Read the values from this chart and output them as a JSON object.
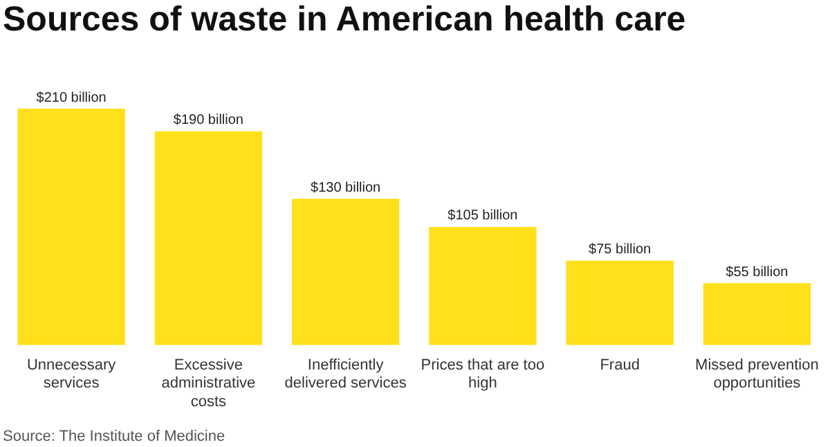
{
  "chart_data": {
    "type": "bar",
    "title": "Sources of waste in American health care",
    "categories": [
      "Unnecessary services",
      "Excessive administrative costs",
      "Inefficiently delivered services",
      "Prices that are too high",
      "Fraud",
      "Missed prevention opportunities"
    ],
    "values": [
      210,
      190,
      130,
      105,
      75,
      55
    ],
    "value_labels": [
      "$210 billion",
      "$190 billion",
      "$130 billion",
      "$105 billion",
      "$75 billion",
      "$55 billion"
    ],
    "color": "#ffe01b",
    "tick_labels": "x",
    "grid": false,
    "legend": false,
    "annotations": [
      "Source: The Institute of Medicine"
    ]
  }
}
